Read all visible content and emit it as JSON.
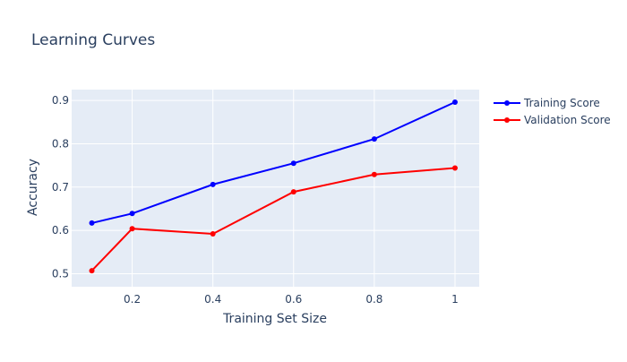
{
  "chart_data": {
    "type": "line",
    "title": "Learning Curves",
    "xlabel": "Training Set Size",
    "ylabel": "Accuracy",
    "xlim": [
      0.05,
      1.06
    ],
    "ylim": [
      0.47,
      0.925
    ],
    "xticks": [
      0.2,
      0.4,
      0.6,
      0.8,
      1
    ],
    "xtick_labels": [
      "0.2",
      "0.4",
      "0.6",
      "0.8",
      "1"
    ],
    "yticks": [
      0.5,
      0.6,
      0.7,
      0.8,
      0.9
    ],
    "ytick_labels": [
      "0.5",
      "0.6",
      "0.7",
      "0.8",
      "0.9"
    ],
    "grid": true,
    "legend_position": "top-right",
    "plot_background": "#e5ecf6",
    "x": [
      0.1,
      0.2,
      0.4,
      0.6,
      0.8,
      1.0
    ],
    "series": [
      {
        "name": "Training Score",
        "color": "#0000ff",
        "values": [
          0.617,
          0.639,
          0.706,
          0.755,
          0.811,
          0.896
        ]
      },
      {
        "name": "Validation Score",
        "color": "#ff0000",
        "values": [
          0.507,
          0.604,
          0.592,
          0.689,
          0.729,
          0.744
        ]
      }
    ]
  }
}
